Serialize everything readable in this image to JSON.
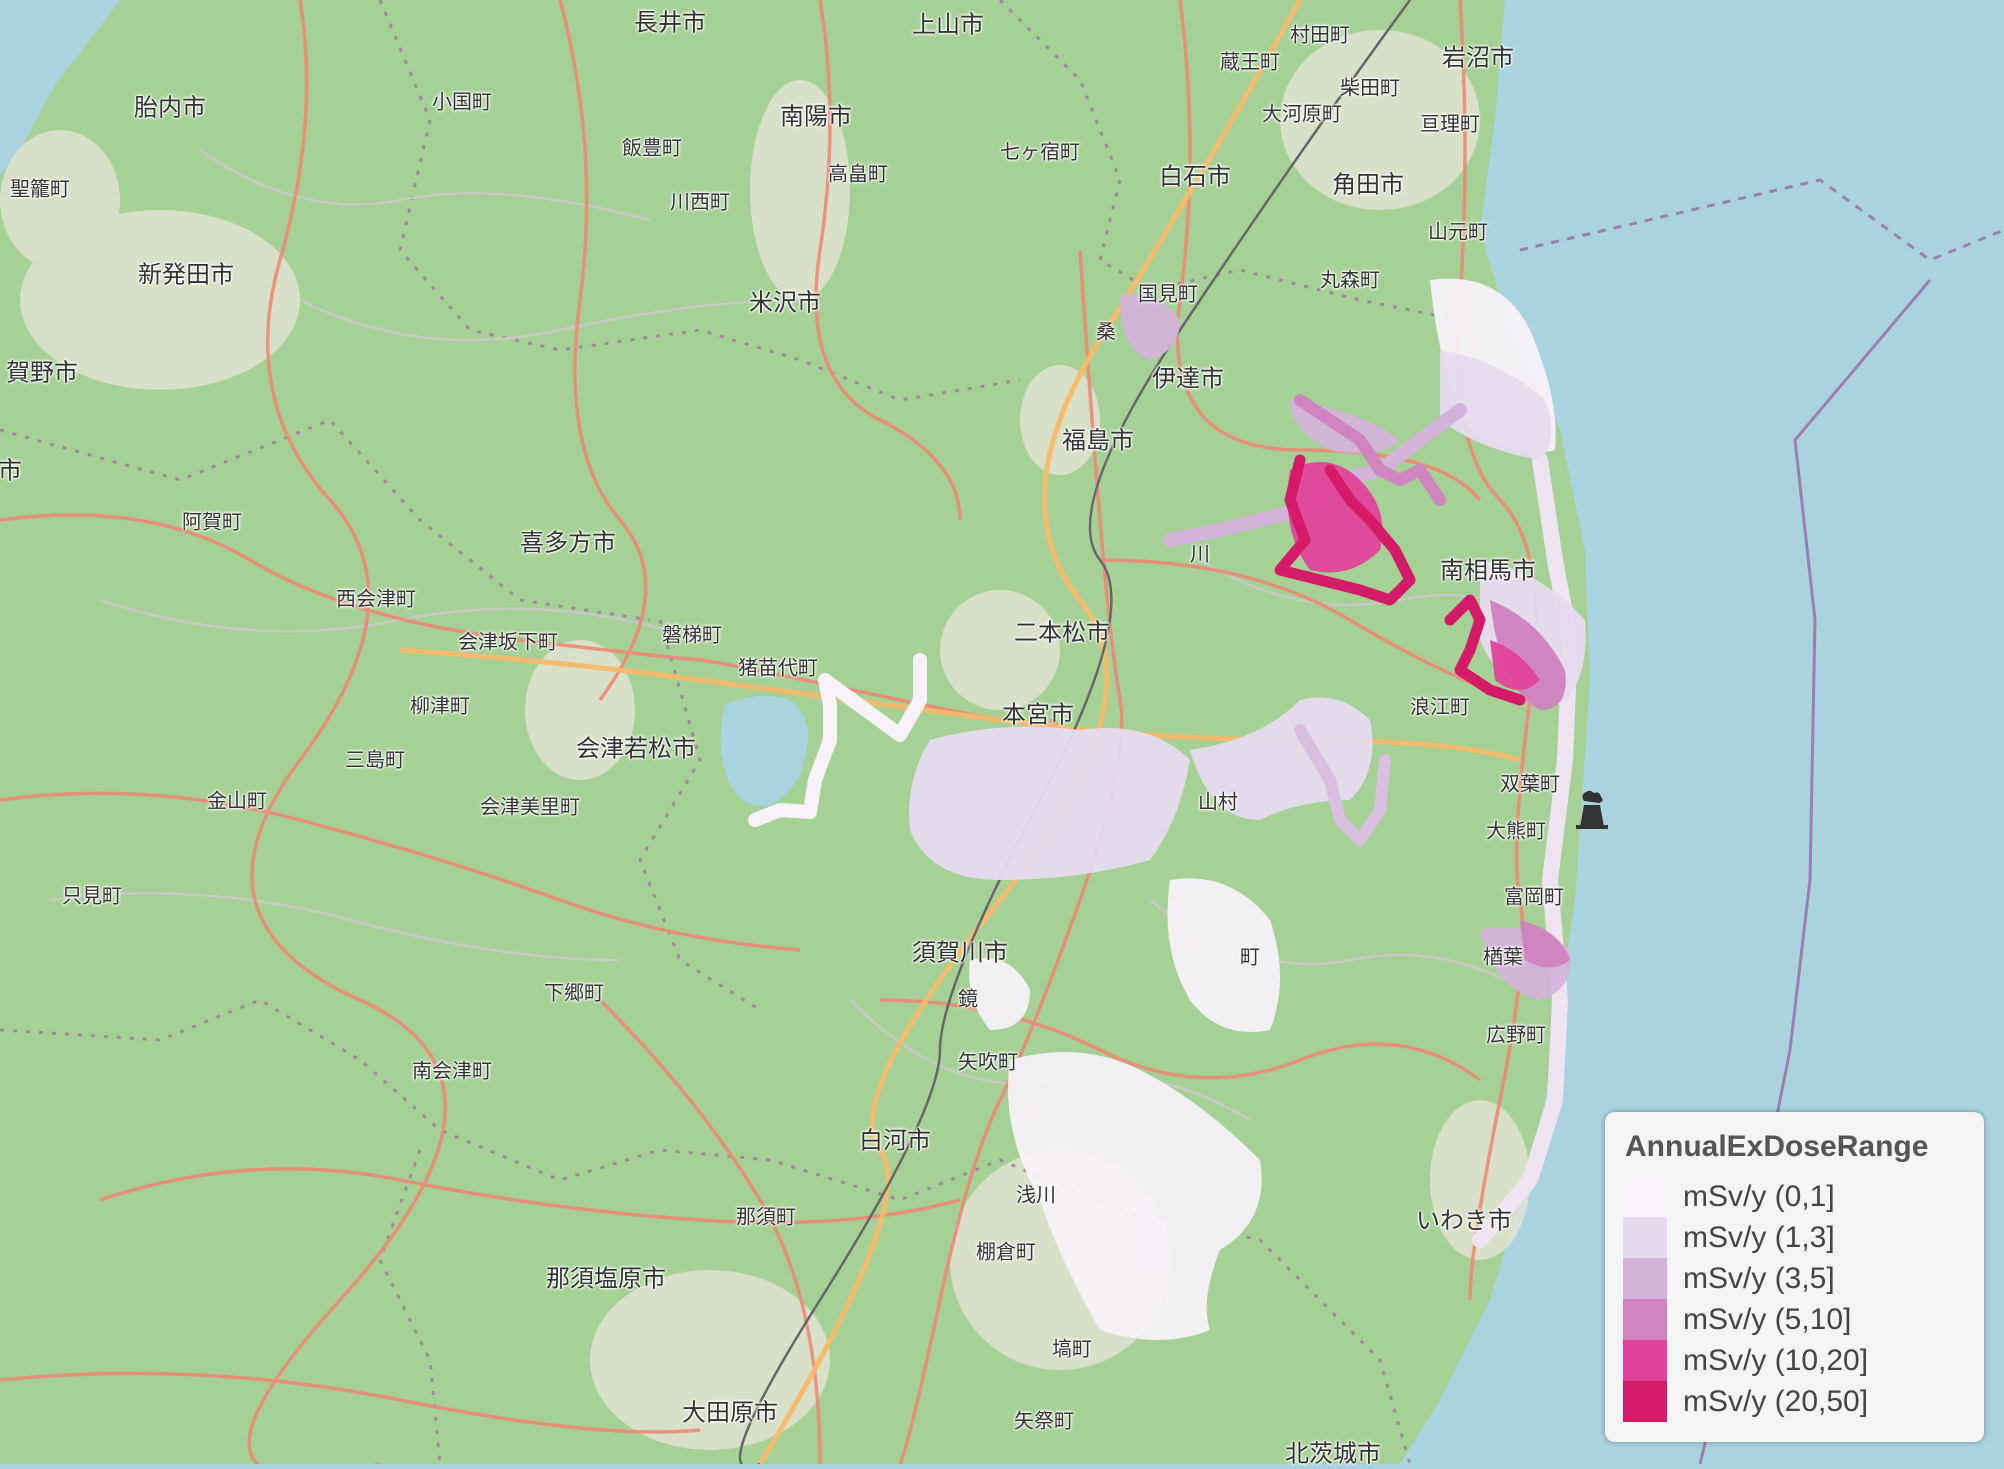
{
  "map": {
    "places": [
      {
        "name": "長井市",
        "kind": "city"
      },
      {
        "name": "上山市",
        "kind": "city"
      },
      {
        "name": "村田町",
        "kind": "town"
      },
      {
        "name": "岩沼市",
        "kind": "city"
      },
      {
        "name": "蔵王町",
        "kind": "town"
      },
      {
        "name": "柴田町",
        "kind": "town"
      },
      {
        "name": "胎内市",
        "kind": "city"
      },
      {
        "name": "小国町",
        "kind": "town"
      },
      {
        "name": "南陽市",
        "kind": "city"
      },
      {
        "name": "大河原町",
        "kind": "town"
      },
      {
        "name": "亘理町",
        "kind": "town"
      },
      {
        "name": "飯豊町",
        "kind": "town"
      },
      {
        "name": "七ヶ宿町",
        "kind": "town"
      },
      {
        "name": "高畠町",
        "kind": "town"
      },
      {
        "name": "白石市",
        "kind": "city"
      },
      {
        "name": "角田市",
        "kind": "city"
      },
      {
        "name": "聖籠町",
        "kind": "town"
      },
      {
        "name": "川西町",
        "kind": "town"
      },
      {
        "name": "山元町",
        "kind": "town"
      },
      {
        "name": "新発田市",
        "kind": "city"
      },
      {
        "name": "丸森町",
        "kind": "town"
      },
      {
        "name": "米沢市",
        "kind": "city"
      },
      {
        "name": "国見町",
        "kind": "town"
      },
      {
        "name": "桑",
        "kind": "town"
      },
      {
        "name": "賀野市",
        "kind": "city"
      },
      {
        "name": "伊達市",
        "kind": "city"
      },
      {
        "name": "福島市",
        "kind": "city"
      },
      {
        "name": "市",
        "kind": "city"
      },
      {
        "name": "阿賀町",
        "kind": "town"
      },
      {
        "name": "喜多方市",
        "kind": "city"
      },
      {
        "name": "川",
        "kind": "town"
      },
      {
        "name": "南相馬市",
        "kind": "city"
      },
      {
        "name": "西会津町",
        "kind": "town"
      },
      {
        "name": "二本松市",
        "kind": "city"
      },
      {
        "name": "会津坂下町",
        "kind": "town"
      },
      {
        "name": "磐梯町",
        "kind": "town"
      },
      {
        "name": "猪苗代町",
        "kind": "town"
      },
      {
        "name": "柳津町",
        "kind": "town"
      },
      {
        "name": "本宮市",
        "kind": "city"
      },
      {
        "name": "浪江町",
        "kind": "town"
      },
      {
        "name": "会津若松市",
        "kind": "city"
      },
      {
        "name": "三島町",
        "kind": "town"
      },
      {
        "name": "双葉町",
        "kind": "town"
      },
      {
        "name": "金山町",
        "kind": "town"
      },
      {
        "name": "会津美里町",
        "kind": "town"
      },
      {
        "name": "山村",
        "kind": "town"
      },
      {
        "name": "大熊町",
        "kind": "town"
      },
      {
        "name": "只見町",
        "kind": "town"
      },
      {
        "name": "富岡町",
        "kind": "town"
      },
      {
        "name": "須賀川市",
        "kind": "city"
      },
      {
        "name": "楢葉",
        "kind": "town"
      },
      {
        "name": "町",
        "kind": "town"
      },
      {
        "name": "鏡",
        "kind": "town"
      },
      {
        "name": "下郷町",
        "kind": "town"
      },
      {
        "name": "広野町",
        "kind": "town"
      },
      {
        "name": "矢吹町",
        "kind": "town"
      },
      {
        "name": "南会津町",
        "kind": "town"
      },
      {
        "name": "白河市",
        "kind": "city"
      },
      {
        "name": "浅川",
        "kind": "town"
      },
      {
        "name": "那須町",
        "kind": "town"
      },
      {
        "name": "いわき市",
        "kind": "city"
      },
      {
        "name": "棚倉町",
        "kind": "town"
      },
      {
        "name": "那須塩原市",
        "kind": "city"
      },
      {
        "name": "塙町",
        "kind": "town"
      },
      {
        "name": "大田原市",
        "kind": "city"
      },
      {
        "name": "矢祭町",
        "kind": "town"
      },
      {
        "name": "北茨城市",
        "kind": "city"
      }
    ],
    "plant_icon": "nuclear-plant-icon",
    "colors": {
      "land": "#9fcc90",
      "sea": "#aad3df",
      "road": "#f07a6a",
      "highway": "#f5b56a",
      "boundary": "#9b7f9c"
    }
  },
  "legend": {
    "title": "AnnualExDoseRange",
    "items": [
      {
        "label": "mSv/y (0,1]",
        "color": "#f7f1f8"
      },
      {
        "label": "mSv/y (1,3]",
        "color": "#e6dbee"
      },
      {
        "label": "mSv/y (3,5]",
        "color": "#d3b3da"
      },
      {
        "label": "mSv/y (5,10]",
        "color": "#cf83bf"
      },
      {
        "label": "mSv/y (10,20]",
        "color": "#e0439a"
      },
      {
        "label": "mSv/y (20,50]",
        "color": "#d41b68"
      }
    ]
  }
}
